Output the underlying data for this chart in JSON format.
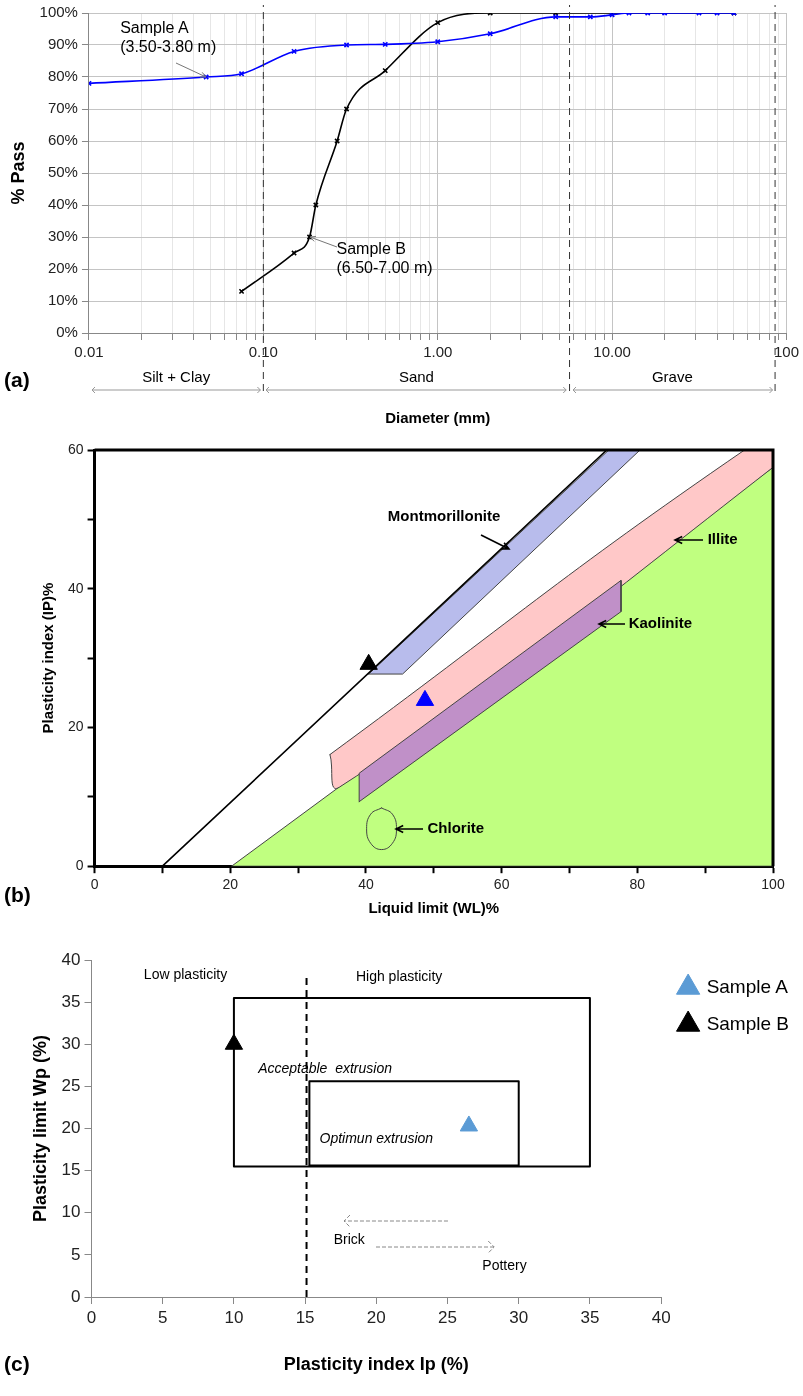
{
  "chart_data": [
    {
      "type": "line",
      "xlabel": "Diameter (mm)",
      "ylabel": "% Pass",
      "log": "x",
      "xlim": [
        0.01,
        100
      ],
      "xticks": [
        0.01,
        {
          "value": 0.02,
          "label": null
        },
        {
          "value": 0.03,
          "label": null
        },
        {
          "value": 0.04,
          "label": null
        },
        {
          "value": 0.05,
          "label": null
        },
        {
          "value": 0.06,
          "label": null
        },
        {
          "value": 0.07,
          "label": null
        },
        {
          "value": 0.08,
          "label": null
        },
        {
          "value": 0.09,
          "label": null
        },
        {
          "value": 0.1,
          "label": "0.10"
        },
        {
          "value": 0.2,
          "label": null
        },
        {
          "value": 0.3,
          "label": null
        },
        {
          "value": 0.4,
          "label": null
        },
        {
          "value": 0.5,
          "label": null
        },
        {
          "value": 0.6,
          "label": null
        },
        {
          "value": 0.7,
          "label": null
        },
        {
          "value": 0.8,
          "label": null
        },
        {
          "value": 0.9,
          "label": null
        },
        {
          "value": 1,
          "label": "1.00"
        },
        {
          "value": 2,
          "label": null
        },
        {
          "value": 3,
          "label": null
        },
        {
          "value": 4,
          "label": null
        },
        {
          "value": 5,
          "label": null
        },
        {
          "value": 6,
          "label": null
        },
        {
          "value": 7,
          "label": null
        },
        {
          "value": 8,
          "label": null
        },
        {
          "value": 9,
          "label": null
        },
        {
          "value": 10,
          "label": "10.00"
        },
        {
          "value": 20,
          "label": null
        },
        {
          "value": 30,
          "label": null
        },
        {
          "value": 40,
          "label": null
        },
        {
          "value": 50,
          "label": null
        },
        {
          "value": 60,
          "label": null
        },
        {
          "value": 70,
          "label": null
        },
        {
          "value": 80,
          "label": null
        },
        {
          "value": 90,
          "label": null
        },
        100
      ],
      "ylim": [
        0,
        100
      ],
      "yticks": [
        {
          "value": 0,
          "label": "0%"
        },
        {
          "value": 10,
          "label": "10%"
        },
        {
          "value": 20,
          "label": "20%"
        },
        {
          "value": 30,
          "label": "30%"
        },
        {
          "value": 40,
          "label": "40%"
        },
        {
          "value": 50,
          "label": "50%"
        },
        {
          "value": 60,
          "label": "60%"
        },
        {
          "value": 70,
          "label": "70%"
        },
        {
          "value": 80,
          "label": "80%"
        },
        {
          "value": 90,
          "label": "90%"
        },
        {
          "value": 100,
          "label": "100%"
        }
      ],
      "grid": true,
      "marker": "cross",
      "legend": false,
      "series": [
        {
          "color": "#0000ff",
          "x": [
            0.01,
            0.047,
            0.075,
            0.15,
            0.3,
            0.5,
            1,
            2,
            4.75,
            7.5,
            10,
            12.5,
            16,
            20,
            31.5,
            40,
            50
          ],
          "values": [
            78,
            80,
            81,
            88,
            90,
            90.2,
            91,
            93.5,
            98.8,
            98.8,
            99.4,
            100,
            100,
            100,
            100,
            100,
            100
          ]
        },
        {
          "color": "#000000",
          "x": [
            0.075,
            0.15,
            0.184,
            0.2,
            0.265,
            0.3,
            0.5,
            1,
            2,
            4.75,
            10,
            50
          ],
          "values": [
            13,
            25,
            30,
            40,
            60,
            70,
            82,
            97,
            100,
            100,
            100,
            100
          ]
        }
      ],
      "ref_lines": [
        {
          "axis": "x",
          "value": 0.1,
          "line_style": "dashed",
          "color": "#333333"
        },
        {
          "axis": "x",
          "value": 5.7,
          "line_style": "dashed",
          "color": "#333333"
        },
        {
          "axis": "x",
          "value": 86,
          "line_style": "dashed",
          "color": "#333333"
        }
      ],
      "annotations": [
        {
          "text": "Sample A\n(3.50-3.80 m)",
          "x": 0.047,
          "y": 80
        },
        {
          "text": "Sample B\n(6.50-7.00 m)",
          "x": 0.184,
          "y": 30
        },
        "Silt + Clay",
        "Sand",
        "Grave",
        "(a)"
      ]
    },
    {
      "type": "scatter",
      "xlabel": "Liquid limit (WL)%",
      "ylabel": "Plasticity index (IP)%",
      "xlim": [
        0,
        100
      ],
      "xticks": [
        0,
        {
          "value": 10,
          "label": null
        },
        20,
        {
          "value": 30,
          "label": null
        },
        40,
        {
          "value": 50,
          "label": null
        },
        60,
        {
          "value": 70,
          "label": null
        },
        80,
        {
          "value": 90,
          "label": null
        },
        100
      ],
      "ylim": [
        0,
        60
      ],
      "yticks": [
        0,
        {
          "value": 10,
          "label": null
        },
        20,
        {
          "value": 30,
          "label": null
        },
        40,
        {
          "value": 50,
          "label": null
        },
        60
      ],
      "grid": false,
      "legend": false,
      "series": [
        {
          "type": "area",
          "color": "#c0ff80",
          "x": [
            20.2,
            100,
            100,
            20.2
          ],
          "values": [
            0,
            57.5,
            0,
            0
          ]
        },
        {
          "type": "area",
          "color": "#ffc8c8",
          "x": [
            34.7,
            36.1,
            100,
            100,
            95.8,
            34.7
          ],
          "values": [
            16.1,
            11.4,
            57.5,
            60,
            60,
            16.1
          ]
        },
        {
          "type": "area",
          "color": "#c090c8",
          "x": [
            39,
            39,
            77.6,
            77.6,
            39
          ],
          "values": [
            9.3,
            13.4,
            41.2,
            36.7,
            9.3
          ]
        },
        {
          "type": "area",
          "color": "#b8bcec",
          "x": [
            40.4,
            45.4,
            80.4,
            75.8,
            40.4
          ],
          "values": [
            27.7,
            27.7,
            60,
            60,
            27.7
          ]
        },
        {
          "type": "line",
          "color": "#000000",
          "x": [
            10,
            75.5
          ],
          "values": [
            0,
            60
          ]
        },
        {
          "type": "area",
          "color": "#c0ff80",
          "x": [
            42.3,
            43.9,
            44.5,
            43.9,
            42.3,
            40.7,
            40.1,
            40.7,
            42.3
          ],
          "values": [
            8.4,
            7.5,
            5.4,
            3.3,
            2.4,
            3.3,
            5.4,
            7.5,
            8.4
          ]
        },
        {
          "type": "scatter",
          "marker": "triangle",
          "color": "#000000",
          "x": [
            40.4
          ],
          "values": [
            29.1
          ]
        },
        {
          "type": "scatter",
          "marker": "triangle",
          "color": "#0000ff",
          "x": [
            48.7
          ],
          "values": [
            23.9
          ]
        }
      ],
      "annotations": [
        {
          "text": "Montmorillonite",
          "x": 61.1,
          "y": 45.7
        },
        {
          "text": "Illite",
          "x": 85.5,
          "y": 47
        },
        {
          "text": "Kaolinite",
          "x": 74.3,
          "y": 34.9
        },
        {
          "text": "Chlorite",
          "x": 44.5,
          "y": 5.4
        },
        "(b)"
      ]
    },
    {
      "type": "scatter",
      "xlabel": "Plasticity index Ip (%)",
      "ylabel": "Plasticity limit Wp (%)",
      "xlim": [
        0,
        40
      ],
      "xticks": [
        0,
        5,
        10,
        15,
        20,
        25,
        30,
        35,
        40
      ],
      "ylim": [
        0,
        40
      ],
      "yticks": [
        0,
        5,
        10,
        15,
        20,
        25,
        30,
        35,
        40
      ],
      "grid": false,
      "legend": "right",
      "series": [
        {
          "type": "area",
          "color": "#ffffff",
          "x": [
            10,
            35,
            35,
            10,
            10
          ],
          "values": [
            15.5,
            15.5,
            35.5,
            35.5,
            15.5
          ]
        },
        {
          "type": "area",
          "color": "#ffffff",
          "x": [
            15.3,
            30,
            30,
            15.3,
            15.3
          ],
          "values": [
            15.6,
            15.6,
            25.6,
            25.6,
            15.6
          ]
        },
        {
          "type": "scatter",
          "name": "Sample A",
          "marker": "triangle",
          "color": "#5b9bd5",
          "x": [
            26.5
          ],
          "values": [
            20.3
          ]
        },
        {
          "type": "scatter",
          "name": "Sample B",
          "marker": "triangle",
          "color": "#000000",
          "x": [
            10
          ],
          "values": [
            30
          ]
        }
      ],
      "ref_lines": [
        {
          "axis": "x",
          "value": 15.1,
          "line_style": "dashed",
          "color": "#000000"
        }
      ],
      "annotations": [
        "Low plasticity",
        "High plasticity",
        "Acceptable  extrusion",
        "Optimun extrusion",
        "Brick",
        "Pottery",
        "(c)"
      ]
    }
  ]
}
